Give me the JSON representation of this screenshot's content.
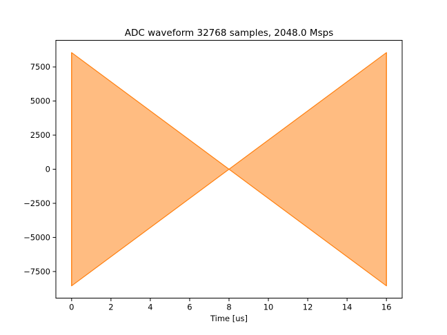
{
  "chart_data": {
    "type": "area",
    "title": "ADC waveform 32768 samples, 2048.0 Msps",
    "xlabel": "Time [us]",
    "ylabel": "",
    "xlim": [
      -0.8,
      16.8
    ],
    "ylim": [
      -9450,
      9450
    ],
    "x_ticks": [
      0,
      2,
      4,
      6,
      8,
      10,
      12,
      14,
      16
    ],
    "x_tick_labels": [
      "0",
      "2",
      "4",
      "6",
      "8",
      "10",
      "12",
      "14",
      "16"
    ],
    "y_ticks": [
      -7500,
      -5000,
      -2500,
      0,
      2500,
      5000,
      7500
    ],
    "y_tick_labels": [
      "−7500",
      "−5000",
      "−2500",
      "0",
      "2500",
      "5000",
      "7500"
    ],
    "grid": false,
    "legend": "none",
    "series": [
      {
        "color": "#ff7f0e",
        "envelope_x": [
          0,
          8,
          16
        ],
        "envelope_upper": [
          8550,
          0,
          8550
        ],
        "envelope_lower": [
          -8550,
          0,
          -8550
        ]
      }
    ]
  }
}
